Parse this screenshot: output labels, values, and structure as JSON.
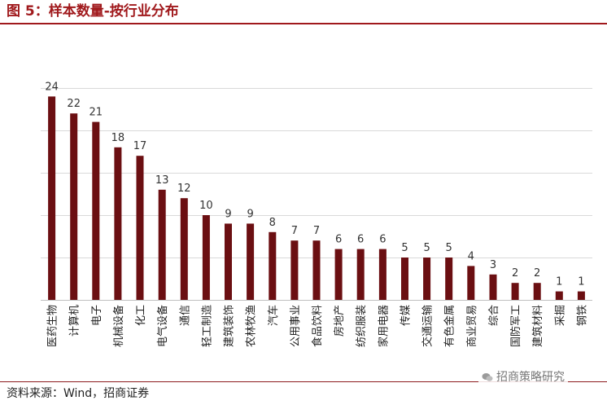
{
  "title": "图 5：样本数量-按行业分布",
  "source": "资料来源：Wind，招商证券",
  "watermark": "招商策略研究",
  "colors": {
    "bar": "#6b0f12",
    "accent": "#a0191c",
    "grid": "#d9d9d9"
  },
  "chart_data": {
    "type": "bar",
    "ylim": [
      0,
      25
    ],
    "yticks": [
      0,
      5,
      10,
      15,
      20,
      25
    ],
    "y_tick_labels_visible": false,
    "grid": true,
    "categories": [
      "医药生物",
      "计算机",
      "电子",
      "机械设备",
      "化工",
      "电气设备",
      "通信",
      "轻工制造",
      "建筑装饰",
      "农林牧渔",
      "汽车",
      "公用事业",
      "食品饮料",
      "房地产",
      "纺织服装",
      "家用电器",
      "传媒",
      "交通运输",
      "有色金属",
      "商业贸易",
      "综合",
      "国防军工",
      "建筑材料",
      "采掘",
      "钢铁"
    ],
    "values": [
      24,
      22,
      21,
      18,
      17,
      13,
      12,
      10,
      9,
      9,
      8,
      7,
      7,
      6,
      6,
      6,
      5,
      5,
      5,
      4,
      3,
      2,
      2,
      1,
      1
    ]
  }
}
